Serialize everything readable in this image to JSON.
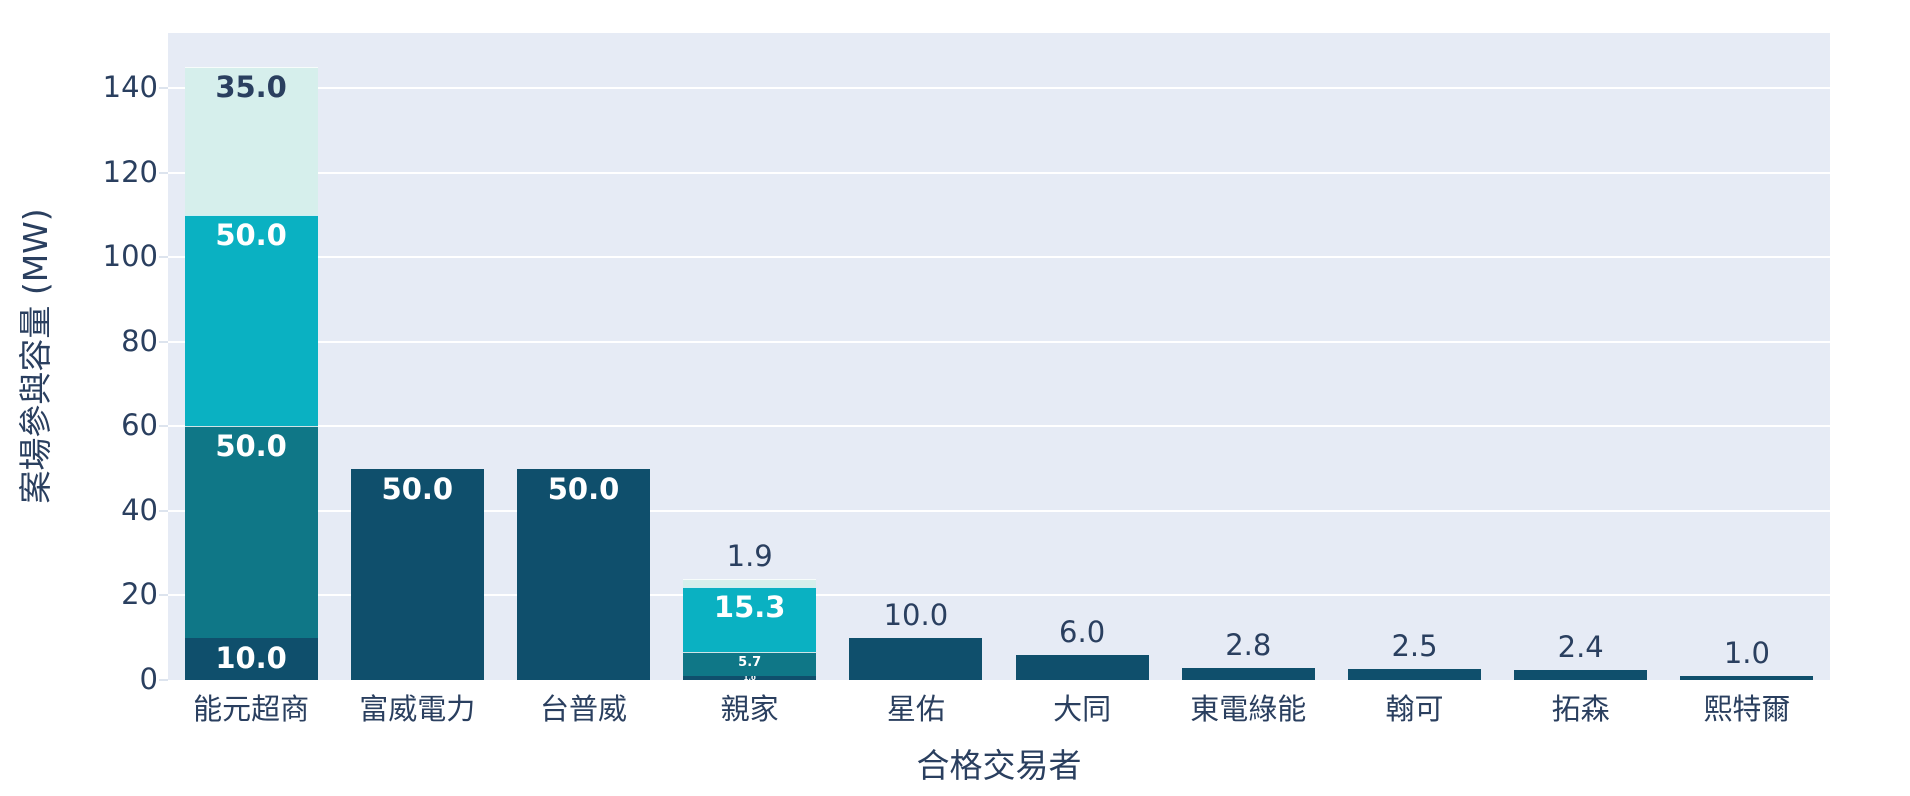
{
  "figure": {
    "background": "#ffffff",
    "plot_background": "#e6ebf5",
    "grid_color": "#ffffff",
    "tick_mark_color": "#dde4ee",
    "text_color": "#2a3f5f"
  },
  "chart_data": {
    "type": "bar",
    "stacked": true,
    "orientation": "vertical",
    "title": "",
    "xlabel": "合格交易者",
    "ylabel": "案場參與容量 (MW)",
    "grid": true,
    "legend": false,
    "yticks": [
      "0",
      "20",
      "40",
      "60",
      "80",
      "100",
      "120",
      "140"
    ],
    "ytick_values": [
      0,
      20,
      40,
      60,
      80,
      100,
      120,
      140
    ],
    "ylim": [
      0,
      153
    ],
    "palette": {
      "navy": "#0f4f6c",
      "teal": "#0f7787",
      "cyan": "#0ab1c2",
      "pale": "#d6efec"
    },
    "categories": [
      "能元超商",
      "富威電力",
      "台普威",
      "親家",
      "星佑",
      "大同",
      "東電綠能",
      "翰可",
      "拓森",
      "熙特爾"
    ],
    "bars": [
      {
        "category": "能元超商",
        "segments": [
          {
            "value": 10.0,
            "label": "10.0",
            "color_key": "navy",
            "label_style": "inside"
          },
          {
            "value": 50.0,
            "label": "50.0",
            "color_key": "teal",
            "label_style": "inside"
          },
          {
            "value": 50.0,
            "label": "50.0",
            "color_key": "cyan",
            "label_style": "inside"
          },
          {
            "value": 35.0,
            "label": "35.0",
            "color_key": "pale",
            "label_style": "inside-dark"
          }
        ]
      },
      {
        "category": "富威電力",
        "segments": [
          {
            "value": 50.0,
            "label": "50.0",
            "color_key": "navy",
            "label_style": "inside"
          }
        ]
      },
      {
        "category": "台普威",
        "segments": [
          {
            "value": 50.0,
            "label": "50.0",
            "color_key": "navy",
            "label_style": "inside"
          }
        ]
      },
      {
        "category": "親家",
        "segments": [
          {
            "value": 1.0,
            "label": "1.0",
            "color_key": "navy",
            "label_style": "inside-clipped"
          },
          {
            "value": 5.7,
            "label": "5.7",
            "color_key": "teal",
            "label_style": "inside-small"
          },
          {
            "value": 15.3,
            "label": "15.3",
            "color_key": "cyan",
            "label_style": "inside"
          },
          {
            "value": 1.9,
            "label": "1.9",
            "color_key": "pale",
            "label_style": "outside"
          }
        ]
      },
      {
        "category": "星佑",
        "segments": [
          {
            "value": 10.0,
            "label": "10.0",
            "color_key": "navy",
            "label_style": "outside"
          }
        ]
      },
      {
        "category": "大同",
        "segments": [
          {
            "value": 6.0,
            "label": "6.0",
            "color_key": "navy",
            "label_style": "outside"
          }
        ]
      },
      {
        "category": "東電綠能",
        "segments": [
          {
            "value": 2.8,
            "label": "2.8",
            "color_key": "navy",
            "label_style": "outside"
          }
        ]
      },
      {
        "category": "翰可",
        "segments": [
          {
            "value": 2.5,
            "label": "2.5",
            "color_key": "navy",
            "label_style": "outside"
          }
        ]
      },
      {
        "category": "拓森",
        "segments": [
          {
            "value": 2.4,
            "label": "2.4",
            "color_key": "navy",
            "label_style": "outside"
          }
        ]
      },
      {
        "category": "熙特爾",
        "segments": [
          {
            "value": 1.0,
            "label": "1.0",
            "color_key": "navy",
            "label_style": "outside"
          }
        ]
      }
    ]
  }
}
